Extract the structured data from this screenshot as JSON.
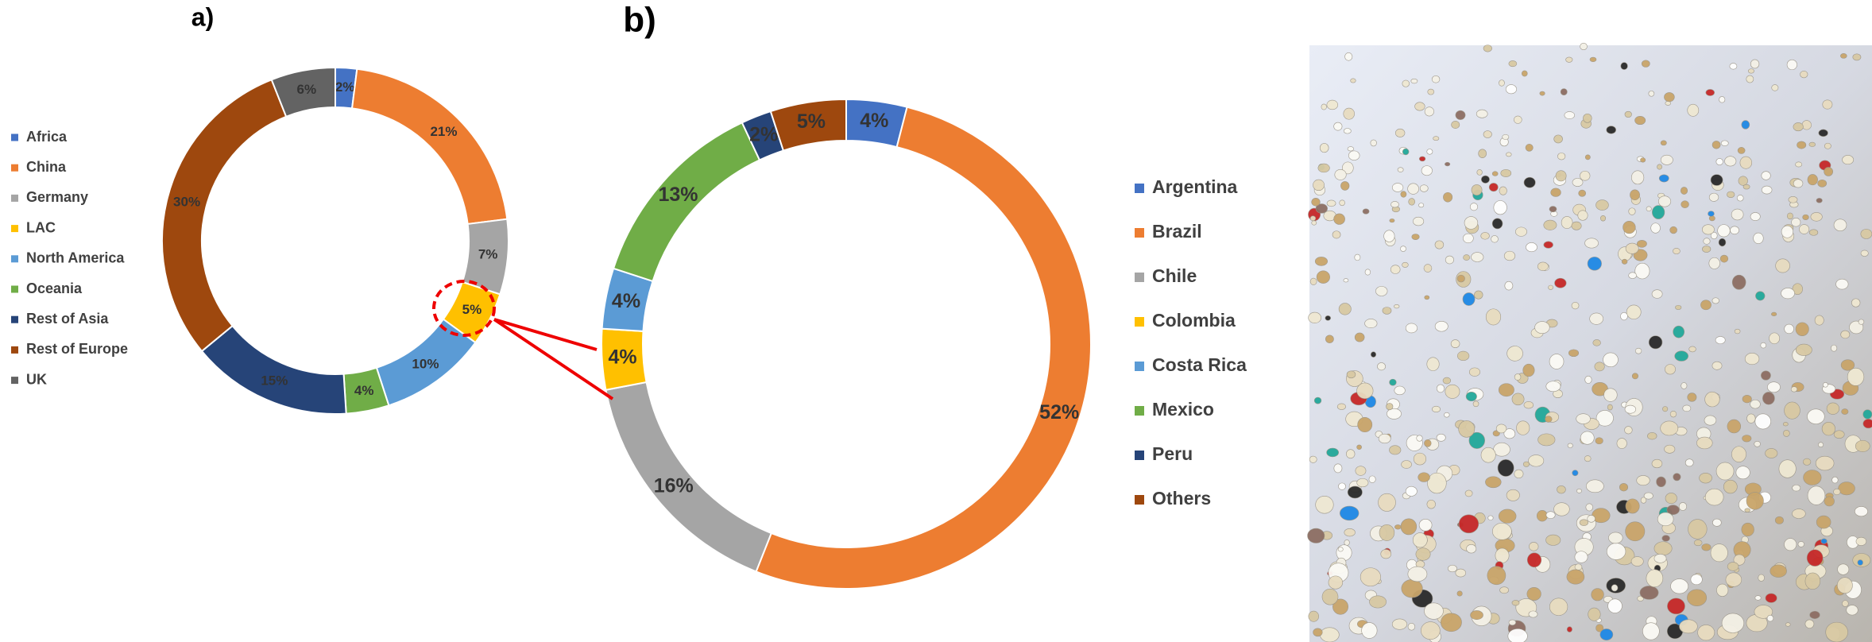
{
  "chart_data": [
    {
      "type": "donut",
      "title": "a)",
      "categories": [
        "Africa",
        "China",
        "Germany",
        "LAC",
        "North America",
        "Oceania",
        "Rest of Asia",
        "Rest of Europe",
        "UK"
      ],
      "values": [
        2,
        21,
        7,
        5,
        10,
        4,
        15,
        30,
        6
      ],
      "value_labels": [
        "2%",
        "21%",
        "7%",
        "5%",
        "10%",
        "4%",
        "15%",
        "30%",
        "6%"
      ],
      "colors": [
        "#4472c4",
        "#ed7d31",
        "#a5a5a5",
        "#ffc000",
        "#5b9bd5",
        "#70ad47",
        "#264478",
        "#9e480e",
        "#636363"
      ]
    },
    {
      "type": "donut",
      "title": "b)",
      "categories": [
        "Argentina",
        "Brazil",
        "Chile",
        "Colombia",
        "Costa Rica",
        "Mexico",
        "Peru",
        "Others"
      ],
      "values": [
        4,
        52,
        16,
        4,
        4,
        13,
        2,
        5
      ],
      "value_labels": [
        "4%",
        "52%",
        "16%",
        "4%",
        "4%",
        "13%",
        "2%",
        "5%"
      ],
      "colors": [
        "#4472c4",
        "#ed7d31",
        "#a5a5a5",
        "#ffc000",
        "#5b9bd5",
        "#70ad47",
        "#264478",
        "#9e480e"
      ]
    }
  ]
}
